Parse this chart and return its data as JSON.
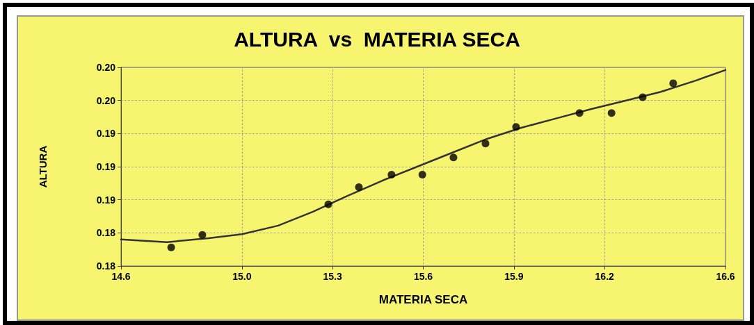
{
  "chart_data": {
    "type": "scatter",
    "title": "ALTURA  vs  MATERIA SECA",
    "xlabel": "MATERIA SECA",
    "ylabel": "ALTURA",
    "xlim": [
      14.6,
      16.6
    ],
    "xticks": [
      14.6,
      {
        "value": 15,
        "label": "15.0"
      },
      15.3,
      15.6,
      15.9,
      16.2,
      16.6
    ],
    "ylim": [
      0.175,
      0.205
    ],
    "yticks": [
      {
        "value": 0.175,
        "label": "0.18"
      },
      {
        "value": 0.18,
        "label": "0.18"
      },
      {
        "value": 0.185,
        "label": "0.19"
      },
      {
        "value": 0.19,
        "label": "0.19"
      },
      {
        "value": 0.195,
        "label": "0.19"
      },
      {
        "value": 0.2,
        "label": "0.20"
      },
      {
        "value": 0.205,
        "label": "0.20"
      }
    ],
    "grid": true,
    "marker": "circle",
    "series": [
      {
        "type": "scatter",
        "color": "#000000",
        "x": [
          14.766,
          14.869,
          15.286,
          15.387,
          15.495,
          15.597,
          15.7,
          15.806,
          15.907,
          16.117,
          16.223,
          16.326,
          16.427
        ],
        "values": [
          0.1778,
          0.1797,
          0.1843,
          0.1869,
          0.1888,
          0.1888,
          0.1914,
          0.1935,
          0.196,
          0.1981,
          0.1981,
          0.2005,
          0.2026
        ]
      },
      {
        "type": "line",
        "color": "#333333",
        "marker": "none",
        "line_style": "solid",
        "x": [
          14.6,
          14.752,
          14.89,
          15.0,
          15.12,
          15.235,
          15.35,
          15.465,
          15.58,
          15.695,
          15.811,
          15.926,
          16.041,
          16.156,
          16.271,
          16.386,
          16.501,
          16.6
        ],
        "values": [
          0.179,
          0.1786,
          0.1792,
          0.1798,
          0.1811,
          0.1832,
          0.1856,
          0.1879,
          0.19,
          0.1921,
          0.1942,
          0.1959,
          0.1973,
          0.1987,
          0.2,
          0.2013,
          0.203,
          0.2046
        ]
      }
    ]
  }
}
